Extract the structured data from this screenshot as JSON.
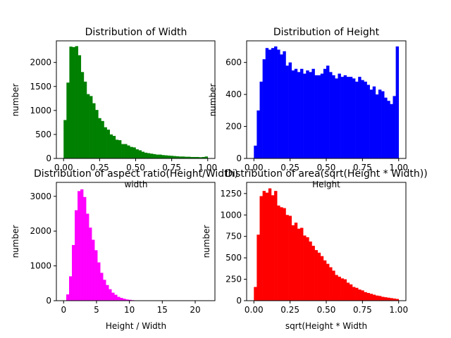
{
  "chart_data": [
    {
      "type": "bar",
      "title": "Distribution of Width",
      "xlabel": "width",
      "ylabel": "number",
      "color": "#008000",
      "xlim": [
        -0.05,
        1.05
      ],
      "ylim": [
        0,
        2450
      ],
      "xticks": [
        0.0,
        0.25,
        0.5,
        0.75,
        1.0
      ],
      "xtick_labels": [
        "0.00",
        "0.25",
        "0.50",
        "0.75",
        "1.00"
      ],
      "yticks": [
        0,
        500,
        1000,
        1500,
        2000
      ],
      "ytick_labels": [
        "0",
        "500",
        "1000",
        "1500",
        "2000"
      ],
      "bin_start": 0.0,
      "bin_width": 0.02,
      "values": [
        800,
        1580,
        2330,
        2320,
        2340,
        2150,
        1800,
        1600,
        1340,
        1300,
        1150,
        1010,
        840,
        780,
        650,
        600,
        500,
        470,
        390,
        380,
        300,
        300,
        270,
        240,
        230,
        190,
        170,
        140,
        120,
        110,
        100,
        90,
        80,
        80,
        70,
        65,
        60,
        55,
        50,
        45,
        40,
        40,
        35,
        35,
        30,
        30,
        30,
        25,
        30,
        40
      ]
    },
    {
      "type": "bar",
      "title": "Distribution of Height",
      "xlabel": "Height",
      "ylabel": "number",
      "color": "#0000ff",
      "xlim": [
        -0.05,
        1.05
      ],
      "ylim": [
        0,
        735
      ],
      "xticks": [
        0.0,
        0.25,
        0.5,
        0.75,
        1.0
      ],
      "xtick_labels": [
        "0.00",
        "0.25",
        "0.50",
        "0.75",
        "1.00"
      ],
      "yticks": [
        0,
        200,
        400,
        600
      ],
      "ytick_labels": [
        "0",
        "200",
        "400",
        "600"
      ],
      "bin_start": 0.0,
      "bin_width": 0.02,
      "values": [
        80,
        300,
        480,
        620,
        690,
        680,
        690,
        700,
        680,
        650,
        670,
        580,
        600,
        550,
        560,
        540,
        560,
        530,
        550,
        540,
        560,
        520,
        520,
        530,
        560,
        580,
        540,
        520,
        500,
        530,
        510,
        520,
        510,
        510,
        500,
        480,
        510,
        490,
        480,
        460,
        430,
        450,
        400,
        430,
        420,
        380,
        360,
        340,
        390,
        700
      ]
    },
    {
      "type": "bar",
      "title": "Distribution of aspect ratio(Height/Width)",
      "xlabel": "Height / Width",
      "ylabel": "number",
      "color": "#ff00ff",
      "xlim": [
        -1.1,
        23.0
      ],
      "ylim": [
        0,
        3400
      ],
      "xticks": [
        0,
        5,
        10,
        15,
        20
      ],
      "xtick_labels": [
        "0",
        "5",
        "10",
        "15",
        "20"
      ],
      "yticks": [
        0,
        1000,
        2000,
        3000
      ],
      "ytick_labels": [
        "0",
        "1000",
        "2000",
        "3000"
      ],
      "bin_start": 0.4,
      "bin_width": 0.43,
      "values": [
        180,
        700,
        1600,
        2600,
        3150,
        3200,
        2980,
        2500,
        2100,
        1750,
        1450,
        1100,
        800,
        600,
        450,
        330,
        230,
        170,
        110,
        80,
        55,
        35,
        25,
        15,
        10,
        8,
        5,
        4,
        3,
        2,
        2,
        1,
        1,
        1,
        1,
        1,
        1,
        0,
        0,
        0,
        0,
        0,
        0,
        0,
        0,
        0,
        0,
        0,
        0,
        1
      ]
    },
    {
      "type": "bar",
      "title": "Distribution of area(sqrt(Height * Width))",
      "xlabel": "sqrt(Height * Width",
      "ylabel": "number",
      "color": "#ff0000",
      "xlim": [
        -0.05,
        1.05
      ],
      "ylim": [
        0,
        1380
      ],
      "xticks": [
        0.0,
        0.25,
        0.5,
        0.75,
        1.0
      ],
      "xtick_labels": [
        "0.00",
        "0.25",
        "0.50",
        "0.75",
        "1.00"
      ],
      "yticks": [
        0,
        250,
        500,
        750,
        1000,
        1250
      ],
      "ytick_labels": [
        "0",
        "250",
        "500",
        "750",
        "1000",
        "1250"
      ],
      "bin_start": 0.0,
      "bin_width": 0.02,
      "values": [
        160,
        770,
        1220,
        1280,
        1260,
        1310,
        1230,
        1280,
        1110,
        1090,
        1080,
        1000,
        990,
        880,
        910,
        840,
        850,
        760,
        740,
        690,
        640,
        590,
        560,
        520,
        470,
        430,
        390,
        350,
        300,
        280,
        260,
        250,
        210,
        190,
        160,
        150,
        130,
        120,
        100,
        90,
        80,
        70,
        60,
        55,
        45,
        40,
        35,
        30,
        25,
        20
      ]
    }
  ]
}
